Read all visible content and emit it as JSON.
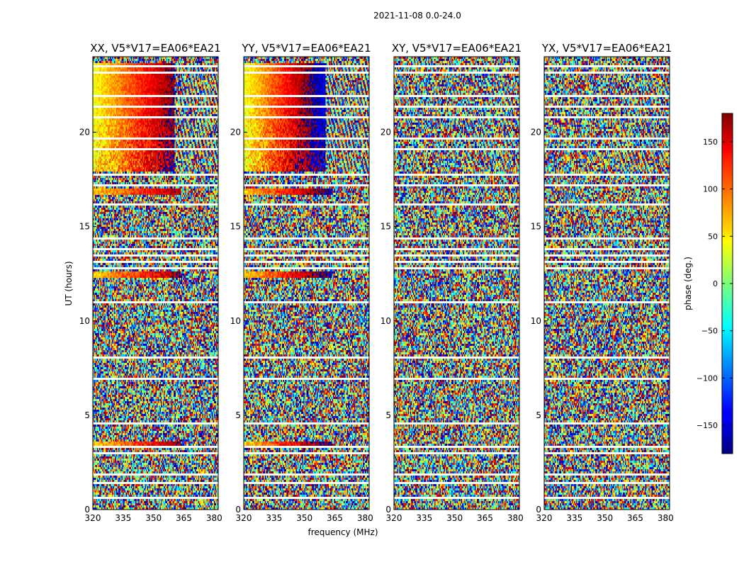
{
  "figure": {
    "suptitle": "2021-11-08 0.0-24.0"
  },
  "chart_data": {
    "type": "heatmap",
    "panels": [
      {
        "id": "xx",
        "title": "XX, V5*V17=EA06*EA21",
        "pattern": "parallel",
        "gradient_strength": 1.0
      },
      {
        "id": "yy",
        "title": "YY, V5*V17=EA06*EA21",
        "pattern": "parallel",
        "gradient_strength": 1.25
      },
      {
        "id": "xy",
        "title": "XY, V5*V17=EA06*EA21",
        "pattern": "cross",
        "gradient_strength": 0.0
      },
      {
        "id": "yx",
        "title": "YX, V5*V17=EA06*EA21",
        "pattern": "cross",
        "gradient_strength": 0.0
      }
    ],
    "x": {
      "label": "frequency (MHz)",
      "range": [
        320,
        382
      ],
      "ticks": [
        320,
        335,
        350,
        365,
        380
      ],
      "tick_labels": [
        "320",
        "335",
        "350",
        "365",
        "380"
      ]
    },
    "y": {
      "label": "UT (hours)",
      "range": [
        0,
        24
      ],
      "ticks": [
        0,
        5,
        10,
        15,
        20
      ],
      "tick_labels": [
        "0",
        "5",
        "10",
        "15",
        "20"
      ]
    },
    "colorbar": {
      "label": "phase (deg.)",
      "range": [
        -180,
        180
      ],
      "ticks": [
        -150,
        -100,
        -50,
        0,
        50,
        100,
        150
      ],
      "tick_labels": [
        "−150",
        "−100",
        "−50",
        "0",
        "50",
        "100",
        "150"
      ],
      "colormap": "jet"
    },
    "coherent_phase": {
      "hours": [
        17.9,
        23.7
      ],
      "freq_edge_mhz": 360.5,
      "phase_low_freq_deg": 40,
      "phase_high_freq_deg": 180
    },
    "coherent_bands_hours": [
      [
        16.7,
        17.0
      ],
      [
        12.3,
        12.6
      ],
      [
        3.4,
        3.6
      ]
    ],
    "flagged_rows_hours": [
      [
        0.6,
        0.68
      ],
      [
        1.35,
        1.5
      ],
      [
        1.85,
        1.92
      ],
      [
        2.95,
        3.02
      ],
      [
        3.3,
        3.38
      ],
      [
        3.8,
        3.86
      ],
      [
        4.25,
        4.3
      ],
      [
        4.55,
        4.62
      ],
      [
        4.85,
        4.9
      ],
      [
        5.85,
        5.9
      ],
      [
        6.6,
        6.65
      ],
      [
        6.9,
        6.95
      ],
      [
        7.65,
        7.7
      ],
      [
        8.05,
        8.1
      ],
      [
        8.75,
        8.8
      ],
      [
        9.2,
        9.25
      ],
      [
        9.8,
        9.85
      ],
      [
        10.55,
        10.6
      ],
      [
        10.95,
        11.05
      ],
      [
        11.45,
        11.5
      ],
      [
        11.8,
        11.85
      ],
      [
        12.15,
        12.2
      ],
      [
        12.75,
        12.8
      ],
      [
        13.1,
        13.2
      ],
      [
        13.45,
        13.52
      ],
      [
        13.75,
        13.82
      ],
      [
        14.35,
        14.4
      ],
      [
        14.95,
        15.0
      ],
      [
        15.55,
        15.6
      ],
      [
        16.15,
        16.2
      ],
      [
        16.55,
        16.6
      ],
      [
        17.15,
        17.2
      ],
      [
        17.45,
        17.5
      ],
      [
        17.7,
        17.78
      ],
      [
        18.1,
        18.15
      ],
      [
        18.45,
        18.5
      ],
      [
        19.05,
        19.1
      ],
      [
        19.65,
        19.7
      ],
      [
        20.25,
        20.3
      ],
      [
        20.75,
        20.85
      ],
      [
        21.35,
        21.4
      ],
      [
        21.9,
        21.95
      ],
      [
        22.3,
        22.35
      ],
      [
        22.75,
        22.8
      ],
      [
        23.15,
        23.2
      ],
      [
        23.45,
        23.5
      ]
    ]
  }
}
